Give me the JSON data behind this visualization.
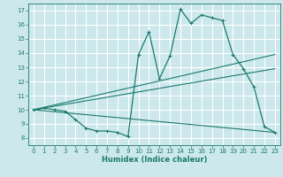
{
  "title": "",
  "xlabel": "Humidex (Indice chaleur)",
  "bg_color": "#cce8ec",
  "grid_color": "#ffffff",
  "line_color": "#1a7a6e",
  "xlim": [
    -0.5,
    23.5
  ],
  "ylim": [
    7.5,
    17.5
  ],
  "xticks": [
    0,
    1,
    2,
    3,
    4,
    5,
    6,
    7,
    8,
    9,
    10,
    11,
    12,
    13,
    14,
    15,
    16,
    17,
    18,
    19,
    20,
    21,
    22,
    23
  ],
  "yticks": [
    8,
    9,
    10,
    11,
    12,
    13,
    14,
    15,
    16,
    17
  ],
  "series": [
    {
      "x": [
        0,
        1,
        2,
        3,
        4,
        5,
        6,
        7,
        8,
        9,
        10,
        11,
        12,
        13,
        14,
        15,
        16,
        17,
        18,
        19,
        20,
        21,
        22,
        23
      ],
      "y": [
        10.0,
        10.1,
        10.0,
        9.9,
        9.3,
        8.7,
        8.5,
        8.5,
        8.4,
        8.1,
        13.9,
        15.5,
        12.2,
        13.8,
        17.1,
        16.1,
        16.7,
        16.5,
        16.3,
        13.9,
        12.9,
        11.6,
        8.8,
        8.4
      ],
      "marker": true
    },
    {
      "x": [
        0,
        23
      ],
      "y": [
        10.0,
        13.9
      ],
      "marker": false
    },
    {
      "x": [
        0,
        23
      ],
      "y": [
        10.0,
        12.9
      ],
      "marker": false
    },
    {
      "x": [
        0,
        23
      ],
      "y": [
        10.0,
        8.4
      ],
      "marker": false
    }
  ]
}
